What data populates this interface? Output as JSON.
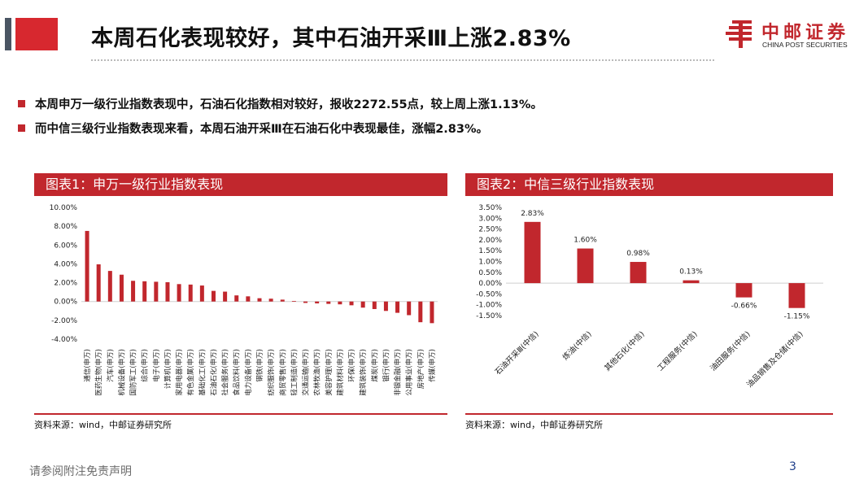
{
  "title": "本周石化表现较好，其中石油开采Ⅲ上涨2.83%",
  "logo": {
    "cn": "中邮证券",
    "en": "CHINA POST SECURITIES"
  },
  "bullets": [
    "本周申万一级行业指数表现中，石油石化指数相对较好，报收2272.55点，较上周上涨1.13%。",
    "而中信三级行业指数表现来看，本周石油开采Ⅲ在石油石化中表现最佳，涨幅2.83%。"
  ],
  "figures": [
    {
      "title": "图表1：申万一级行业指数表现",
      "source": "资料来源：wind，中邮证券研究所"
    },
    {
      "title": "图表2：中信三级行业指数表现",
      "source": "资料来源：wind，中邮证券研究所"
    }
  ],
  "footer": {
    "disclaimer": "请参阅附注免责声明",
    "page": "3"
  },
  "colors": {
    "accent": "#c1272d",
    "bar": "#c1272d"
  },
  "chart_data": [
    {
      "type": "bar",
      "title": "图表1：申万一级行业指数表现",
      "categories": [
        "通信(申万)",
        "医药生物(申万)",
        "汽车(申万)",
        "机械设备(申万)",
        "国防军工(申万)",
        "综合(申万)",
        "电子(申万)",
        "计算机(申万)",
        "家用电器(申万)",
        "有色金属(申万)",
        "基础化工(申万)",
        "石油石化(申万)",
        "社会服务(申万)",
        "食品饮料(申万)",
        "电力设备(申万)",
        "钢铁(申万)",
        "纺织服饰(申万)",
        "商贸零售(申万)",
        "轻工制造(申万)",
        "交通运输(申万)",
        "农林牧渔(申万)",
        "美容护理(申万)",
        "建筑材料(申万)",
        "环保(申万)",
        "建筑装饰(申万)",
        "煤炭(申万)",
        "银行(申万)",
        "非银金融(申万)",
        "公用事业(申万)",
        "房地产(申万)",
        "传媒(申万)"
      ],
      "values": [
        7.5,
        3.95,
        3.25,
        2.85,
        2.2,
        2.15,
        2.1,
        2.05,
        1.85,
        1.8,
        1.7,
        1.13,
        1.05,
        0.65,
        0.55,
        0.35,
        0.3,
        0.2,
        0.05,
        -0.15,
        -0.2,
        -0.25,
        -0.3,
        -0.4,
        -0.65,
        -0.8,
        -1.0,
        -1.2,
        -1.45,
        -2.2,
        -2.3
      ],
      "ylim": [
        -4,
        10
      ],
      "yticks": [
        "10.00%",
        "8.00%",
        "6.00%",
        "4.00%",
        "2.00%",
        "0.00%",
        "-2.00%",
        "-4.00%"
      ],
      "grid": false
    },
    {
      "type": "bar",
      "title": "图表2：中信三级行业指数表现",
      "categories": [
        "石油开采Ⅲ(中信)",
        "炼油(中信)",
        "其他石化(中信)",
        "工程服务(中信)",
        "油田服务(中信)",
        "油品销售及仓储(中信)"
      ],
      "values": [
        2.83,
        1.6,
        0.98,
        0.13,
        -0.66,
        -1.15
      ],
      "data_labels": [
        "2.83%",
        "1.60%",
        "0.98%",
        "0.13%",
        "-0.66%",
        "-1.15%"
      ],
      "ylim": [
        -1.5,
        3.5
      ],
      "yticks": [
        "3.50%",
        "3.00%",
        "2.50%",
        "2.00%",
        "1.50%",
        "1.00%",
        "0.50%",
        "0.00%",
        "-0.50%",
        "-1.00%",
        "-1.50%"
      ],
      "grid": false
    }
  ]
}
